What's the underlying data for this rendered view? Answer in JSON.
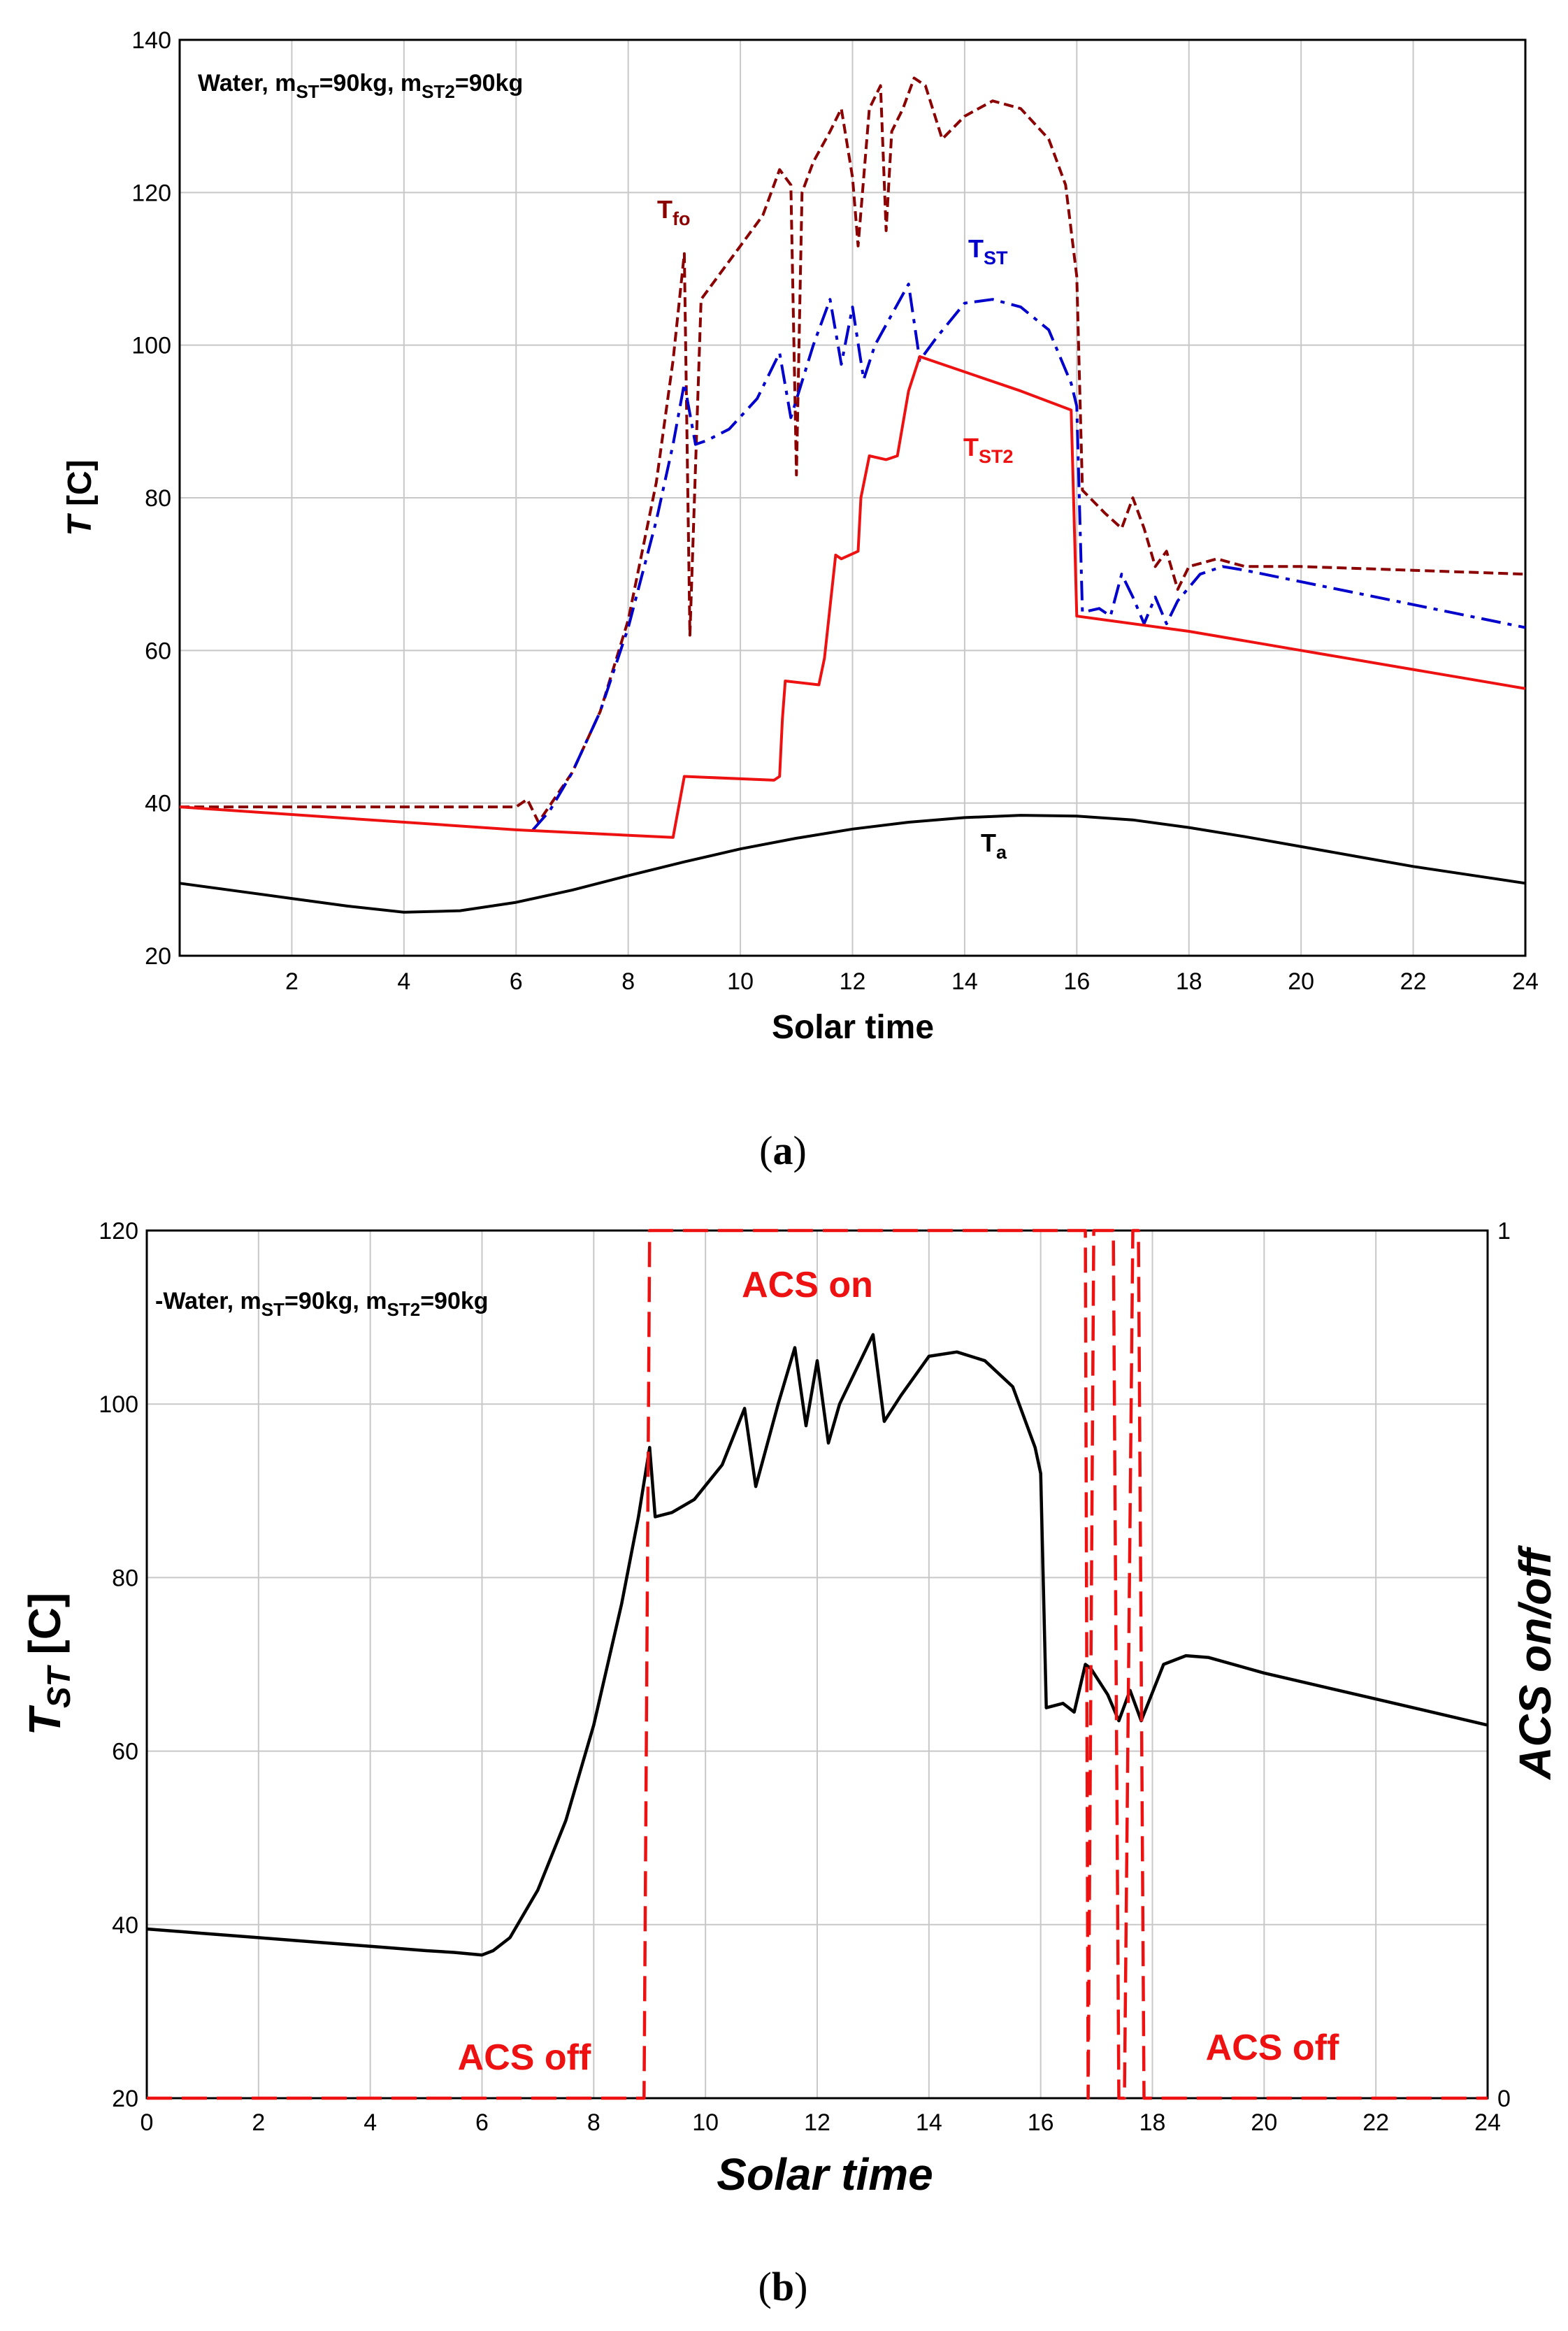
{
  "chart_data": [
    {
      "panel": "a",
      "type": "line",
      "annotation": "Water, m<sub>ST</sub>=90kg, m<sub>ST2</sub>=90kg",
      "annotation_parts": [
        "Water, m",
        "ST",
        "=90kg, m",
        "ST2",
        "=90kg"
      ],
      "xlabel": "Solar time",
      "ylabel_main": "T",
      "ylabel_unit": "[C]",
      "xlim": [
        0,
        24
      ],
      "ylim": [
        20,
        140
      ],
      "xticks": [
        2,
        4,
        6,
        8,
        10,
        12,
        14,
        16,
        18,
        20,
        22,
        24
      ],
      "yticks": [
        20,
        40,
        60,
        80,
        100,
        120,
        140
      ],
      "caption": "(a)",
      "caption_letter": "a",
      "series": [
        {
          "name": "T_fo",
          "label_main": "T",
          "label_sub": "fo",
          "color": "#8b0000",
          "dash": "dashed",
          "x": [
            0,
            6.0,
            6.2,
            6.4,
            7.0,
            7.5,
            8.0,
            8.5,
            8.8,
            9.0,
            9.1,
            9.3,
            9.6,
            10.0,
            10.4,
            10.7,
            10.9,
            11.0,
            11.1,
            11.3,
            11.6,
            11.8,
            12.0,
            12.1,
            12.3,
            12.5,
            12.6,
            12.7,
            12.9,
            13.1,
            13.3,
            13.6,
            14.0,
            14.5,
            15.0,
            15.5,
            15.8,
            16.0,
            16.1,
            16.5,
            16.8,
            17.0,
            17.2,
            17.4,
            17.6,
            17.8,
            18.0,
            18.5,
            19.0,
            20.0,
            22.0,
            24.0
          ],
          "y": [
            39.5,
            39.5,
            40.5,
            37.5,
            44,
            52,
            64,
            82,
            98,
            112,
            62,
            106,
            109,
            113,
            117,
            123,
            121,
            83,
            120,
            124,
            128,
            131,
            122,
            113,
            131,
            134,
            115,
            128,
            131,
            135,
            134,
            127,
            130,
            132,
            131,
            127,
            121,
            109,
            81,
            78,
            76,
            80,
            76,
            71,
            73,
            68,
            71,
            72,
            71,
            71,
            70.5,
            70
          ]
        },
        {
          "name": "T_ST",
          "label_main": "T",
          "label_sub": "ST",
          "color": "#0000cc",
          "dash": "dashdot",
          "x": [
            6.3,
            6.6,
            7.0,
            7.5,
            8.0,
            8.5,
            8.8,
            9.0,
            9.2,
            9.4,
            9.8,
            10.3,
            10.7,
            10.9,
            11.3,
            11.6,
            11.8,
            12.0,
            12.2,
            12.4,
            12.7,
            13.0,
            13.2,
            13.5,
            14.0,
            14.5,
            15.0,
            15.5,
            15.9,
            16.0,
            16.1,
            16.4,
            16.6,
            16.8,
            17.0,
            17.2,
            17.4,
            17.6,
            17.8,
            18.2,
            18.6,
            19.0,
            20.0,
            22.0,
            24.0
          ],
          "y": [
            36.5,
            39,
            44,
            52,
            63,
            77,
            87,
            95,
            87,
            87.5,
            89,
            93,
            99,
            90.5,
            100,
            106,
            97.5,
            105,
            95.5,
            100,
            104,
            108,
            98,
            101,
            105.5,
            106,
            105,
            102,
            95,
            92,
            65,
            65.5,
            64.5,
            70,
            67,
            63.5,
            67,
            63.5,
            66.5,
            70,
            71,
            70.5,
            69,
            66,
            63
          ]
        },
        {
          "name": "T_ST2",
          "label_main": "T",
          "label_sub": "ST2",
          "color": "#ee1111",
          "dash": "solid",
          "x": [
            0,
            6.0,
            8.8,
            9.0,
            10.6,
            10.7,
            10.75,
            10.8,
            11.4,
            11.5,
            11.7,
            11.8,
            12.1,
            12.15,
            12.3,
            12.6,
            12.8,
            13.0,
            13.2,
            14.0,
            15.0,
            15.9,
            16.0,
            18.0,
            20.0,
            22.0,
            24.0
          ],
          "y": [
            39.5,
            36.5,
            35.5,
            43.5,
            43,
            43.5,
            51,
            56,
            55.5,
            59,
            72.5,
            72,
            73,
            80,
            85.5,
            85,
            85.5,
            94,
            98.5,
            96.5,
            94,
            91.5,
            64.5,
            62.5,
            60,
            57.5,
            55
          ]
        },
        {
          "name": "T_a",
          "label_main": "T",
          "label_sub": "a",
          "color": "#000000",
          "dash": "solid",
          "x": [
            0,
            1,
            2,
            3,
            4,
            5,
            6,
            7,
            8,
            9,
            10,
            11,
            12,
            13,
            14,
            15,
            16,
            17,
            18,
            19,
            20,
            21,
            22,
            23,
            24
          ],
          "y": [
            29.5,
            28.5,
            27.5,
            26.5,
            25.7,
            25.9,
            27,
            28.6,
            30.5,
            32.3,
            34,
            35.4,
            36.6,
            37.5,
            38.1,
            38.4,
            38.3,
            37.8,
            36.8,
            35.6,
            34.3,
            33,
            31.7,
            30.6,
            29.5
          ]
        }
      ]
    },
    {
      "panel": "b",
      "type": "line",
      "annotation_parts": [
        "Water, m",
        "ST",
        "=90kg, m",
        "ST2",
        "=90kg"
      ],
      "xlabel": "Solar time",
      "ylabel_main": "T",
      "ylabel_sub": "ST",
      "ylabel_unit": "[C]",
      "y2label": "ACS on/off",
      "xlim": [
        0,
        24
      ],
      "ylim": [
        20,
        120
      ],
      "y2lim": [
        0,
        1
      ],
      "xticks": [
        0,
        2,
        4,
        6,
        8,
        10,
        12,
        14,
        16,
        18,
        20,
        22,
        24
      ],
      "yticks": [
        20,
        40,
        60,
        80,
        100,
        120
      ],
      "y2ticks": [
        0,
        1
      ],
      "caption": "(b)",
      "caption_letter": "b",
      "region_labels": [
        "ACS on",
        "ACS off",
        "ACS off"
      ],
      "series": [
        {
          "name": "T_ST",
          "color": "#000000",
          "dash": "solid",
          "axis": "left",
          "x": [
            0,
            1,
            2,
            3,
            4,
            5,
            5.5,
            6.0,
            6.2,
            6.5,
            7.0,
            7.5,
            8.0,
            8.5,
            8.8,
            9.0,
            9.1,
            9.4,
            9.8,
            10.3,
            10.7,
            10.9,
            11.3,
            11.6,
            11.8,
            12.0,
            12.2,
            12.4,
            12.7,
            13.0,
            13.2,
            13.5,
            14.0,
            14.5,
            15.0,
            15.5,
            15.9,
            16.0,
            16.1,
            16.4,
            16.6,
            16.8,
            16.9,
            17.2,
            17.4,
            17.6,
            17.8,
            18.2,
            18.6,
            19.0,
            20.0,
            22.0,
            24.0
          ],
          "y": [
            39.5,
            39,
            38.5,
            38,
            37.5,
            37,
            36.8,
            36.5,
            37,
            38.5,
            44,
            52,
            63,
            77,
            87,
            95,
            87,
            87.5,
            89,
            93,
            99.5,
            90.5,
            100,
            106.5,
            97.5,
            105,
            95.5,
            100,
            104,
            108,
            98,
            101,
            105.5,
            106,
            105,
            102,
            95,
            92,
            65,
            65.5,
            64.5,
            70,
            69.5,
            66.5,
            63.5,
            67,
            63.5,
            70,
            71,
            70.8,
            69,
            66,
            63
          ]
        },
        {
          "name": "ACS on/off",
          "color": "#ee1111",
          "dash": "longdash",
          "axis": "right",
          "x": [
            0,
            8.9,
            9.0,
            16.8,
            16.85,
            16.95,
            17.3,
            17.4,
            17.5,
            17.65,
            17.75,
            17.85,
            24
          ],
          "y": [
            0,
            0,
            1,
            1,
            0,
            1,
            1,
            0,
            0,
            1,
            1,
            0,
            0
          ]
        }
      ]
    }
  ]
}
